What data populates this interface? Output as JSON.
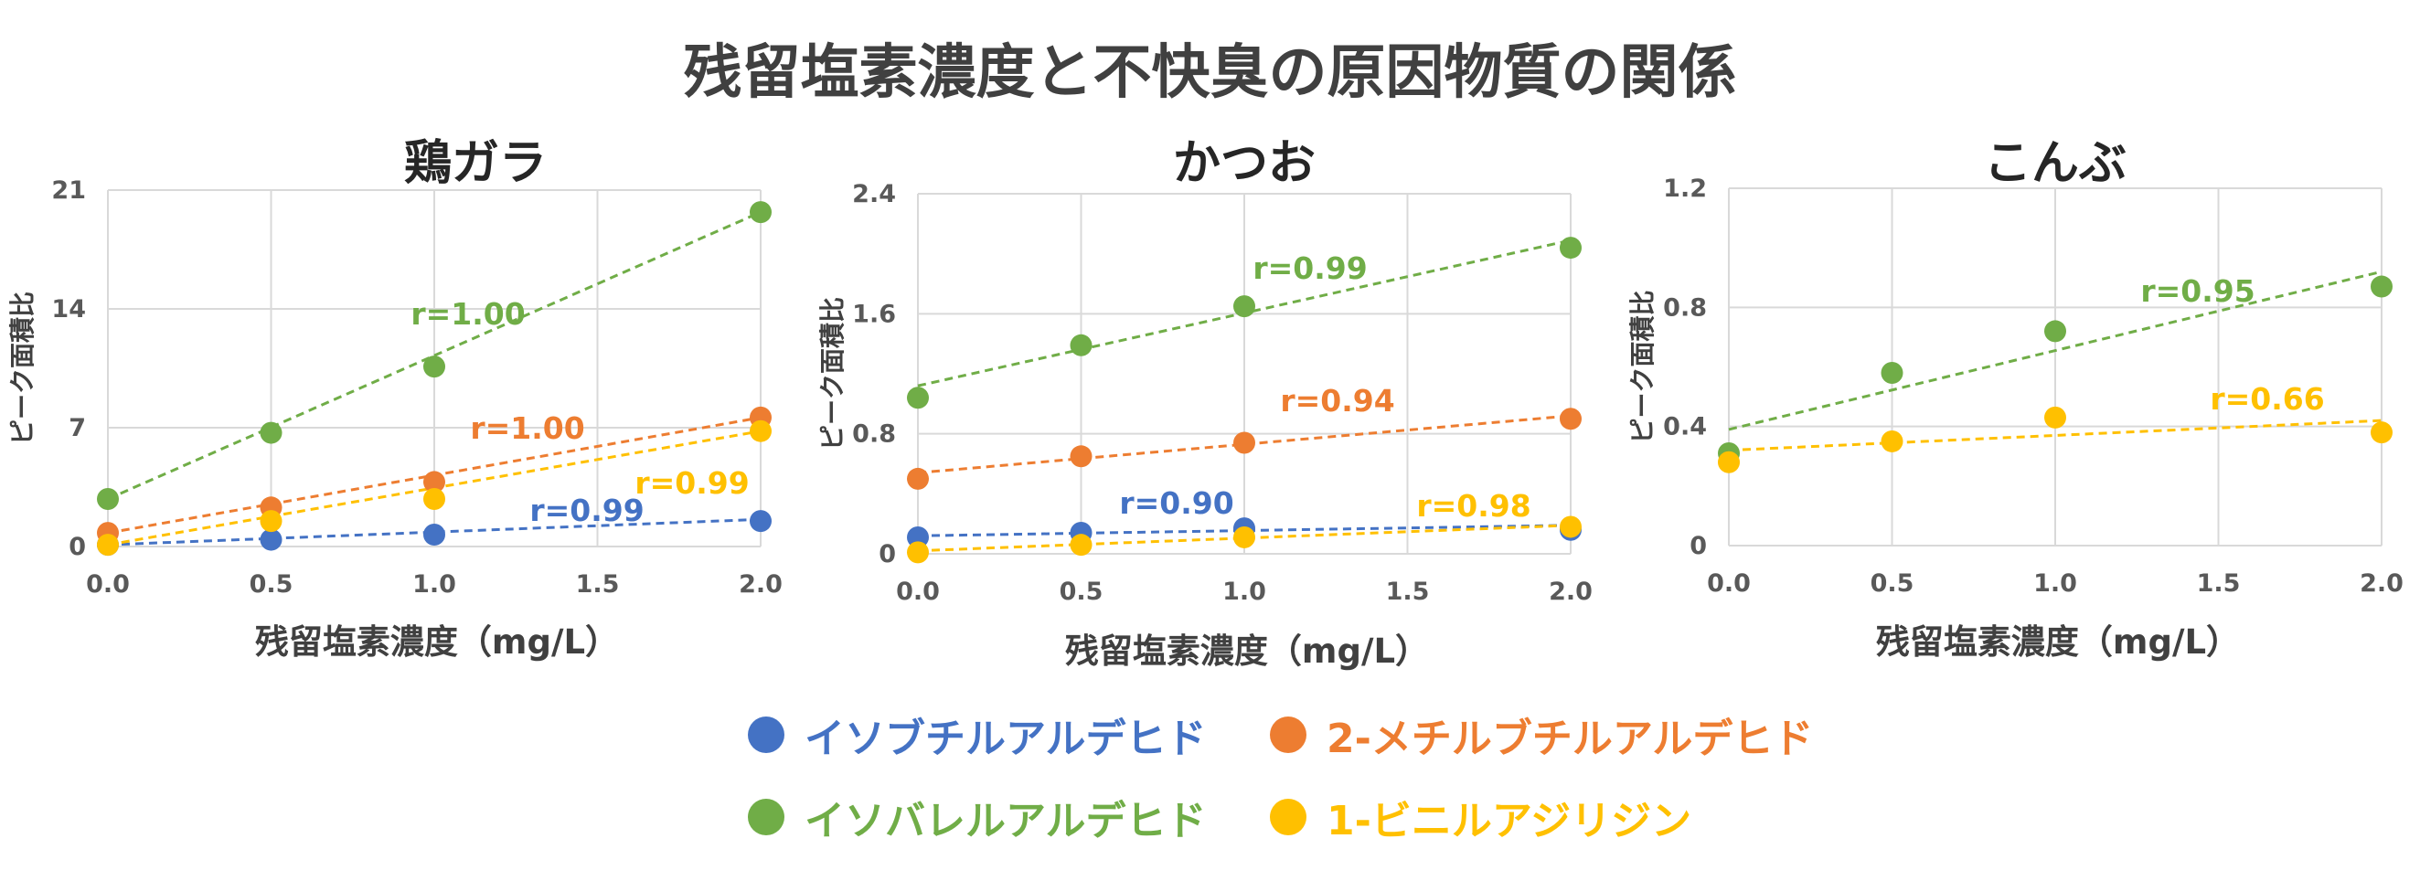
{
  "title": "残留塩素濃度と不快臭の原因物質の関係",
  "legend": [
    {
      "name": "イソブチルアルデヒド",
      "color": "#4472C4"
    },
    {
      "name": "2-メチルブチルアルデヒド",
      "color": "#ED7D31"
    },
    {
      "name": "イソバレルアルデヒド",
      "color": "#70AD47"
    },
    {
      "name": "1-ビニルアジリジン",
      "color": "#FFC000"
    }
  ],
  "chart_data": [
    {
      "type": "scatter",
      "title": "鶏ガラ",
      "xlabel": "残留塩素濃度（mg/L）",
      "ylabel": "ピーク面積比",
      "xlim": [
        0,
        2
      ],
      "ylim": [
        0,
        21
      ],
      "xticks": [
        "0.0",
        "0.5",
        "1.0",
        "1.5",
        "2.0"
      ],
      "yticks": [
        "0",
        "7",
        "14",
        "21"
      ],
      "x": [
        0,
        0.5,
        1,
        2
      ],
      "series": [
        {
          "name": "イソブチルアルデヒド",
          "color": "#4472C4",
          "values": [
            0.1,
            0.4,
            0.7,
            1.5
          ],
          "trend": [
            0.1,
            1.6
          ],
          "r": "r=0.99"
        },
        {
          "name": "2-メチルブチルアルデヒド",
          "color": "#ED7D31",
          "values": [
            0.8,
            2.3,
            3.8,
            7.6
          ],
          "trend": [
            0.8,
            7.6
          ],
          "r": "r=1.00"
        },
        {
          "name": "イソバレルアルデヒド",
          "color": "#70AD47",
          "values": [
            2.8,
            6.7,
            10.6,
            19.7
          ],
          "trend": [
            2.8,
            19.7
          ],
          "r": "r=1.00"
        },
        {
          "name": "1-ビニルアジリジン",
          "color": "#FFC000",
          "values": [
            0.1,
            1.5,
            2.8,
            6.8
          ],
          "trend": [
            0.1,
            6.8
          ],
          "r": "r=0.99"
        }
      ]
    },
    {
      "type": "scatter",
      "title": "かつお",
      "xlabel": "残留塩素濃度（mg/L）",
      "ylabel": "ピーク面積比",
      "xlim": [
        0,
        2
      ],
      "ylim": [
        0,
        2.4
      ],
      "xticks": [
        "0.0",
        "0.5",
        "1.0",
        "1.5",
        "2.0"
      ],
      "yticks": [
        "0",
        "0.8",
        "1.6",
        "2.4"
      ],
      "x": [
        0,
        0.5,
        1,
        2
      ],
      "series": [
        {
          "name": "イソブチルアルデヒド",
          "color": "#4472C4",
          "values": [
            0.11,
            0.14,
            0.17,
            0.16
          ],
          "trend": [
            0.12,
            0.19
          ],
          "r": "r=0.90"
        },
        {
          "name": "2-メチルブチルアルデヒド",
          "color": "#ED7D31",
          "values": [
            0.5,
            0.65,
            0.74,
            0.9
          ],
          "trend": [
            0.54,
            0.92
          ],
          "r": "r=0.94"
        },
        {
          "name": "イソバレルアルデヒド",
          "color": "#70AD47",
          "values": [
            1.04,
            1.39,
            1.65,
            2.04
          ],
          "trend": [
            1.12,
            2.09
          ],
          "r": "r=0.99"
        },
        {
          "name": "1-ビニルアジリジン",
          "color": "#FFC000",
          "values": [
            0.01,
            0.06,
            0.11,
            0.18
          ],
          "trend": [
            0.02,
            0.19
          ],
          "r": "r=0.98"
        }
      ]
    },
    {
      "type": "scatter",
      "title": "こんぶ",
      "xlabel": "残留塩素濃度（mg/L）",
      "ylabel": "ピーク面積比",
      "xlim": [
        0,
        2
      ],
      "ylim": [
        0,
        1.2
      ],
      "xticks": [
        "0.0",
        "0.5",
        "1.0",
        "1.5",
        "2.0"
      ],
      "yticks": [
        "0",
        "0.4",
        "0.8",
        "1.2"
      ],
      "x": [
        0,
        0.5,
        1,
        2
      ],
      "series": [
        {
          "name": "イソバレルアルデヒド",
          "color": "#70AD47",
          "values": [
            0.31,
            0.58,
            0.72,
            0.87
          ],
          "trend": [
            0.39,
            0.92
          ],
          "r": "r=0.95"
        },
        {
          "name": "1-ビニルアジリジン",
          "color": "#FFC000",
          "values": [
            0.28,
            0.35,
            0.43,
            0.38
          ],
          "trend": [
            0.32,
            0.42
          ],
          "r": "r=0.66"
        }
      ]
    }
  ]
}
